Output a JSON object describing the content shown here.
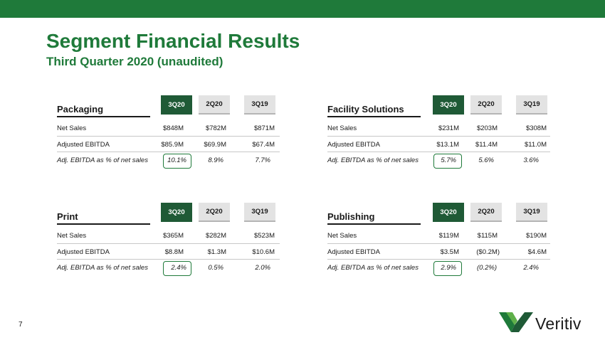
{
  "header": {
    "title": "Segment Financial Results",
    "subtitle": "Third Quarter 2020 (unaudited)"
  },
  "columns": [
    "3Q20",
    "2Q20",
    "3Q19"
  ],
  "row_labels": [
    "Net Sales",
    "Adjusted EBITDA",
    "Adj. EBITDA as % of net sales"
  ],
  "segments": [
    {
      "name": "Packaging",
      "net_sales": [
        "$848M",
        "$782M",
        "$871M"
      ],
      "adjusted_ebitda": [
        "$85.9M",
        "$69.9M",
        "$67.4M"
      ],
      "ebitda_margin": [
        "10.1%",
        "8.9%",
        "7.7%"
      ]
    },
    {
      "name": "Facility Solutions",
      "net_sales": [
        "$231M",
        "$203M",
        "$308M"
      ],
      "adjusted_ebitda": [
        "$13.1M",
        "$11.4M",
        "$11.0M"
      ],
      "ebitda_margin": [
        "5.7%",
        "5.6%",
        "3.6%"
      ]
    },
    {
      "name": "Print",
      "net_sales": [
        "$365M",
        "$282M",
        "$523M"
      ],
      "adjusted_ebitda": [
        "$8.8M",
        "$1.3M",
        "$10.6M"
      ],
      "ebitda_margin": [
        "2.4%",
        "0.5%",
        "2.0%"
      ]
    },
    {
      "name": "Publishing",
      "net_sales": [
        "$119M",
        "$115M",
        "$190M"
      ],
      "adjusted_ebitda": [
        "$3.5M",
        "($0.2M)",
        "$4.6M"
      ],
      "ebitda_margin": [
        "2.9%",
        "(0.2%)",
        "2.4%"
      ]
    }
  ],
  "footer": {
    "page_number": "7",
    "logo_text": "Veritiv"
  },
  "colors": {
    "brand_green": "#1f7a3a",
    "header_dark_green": "#1f5a36",
    "header_gray": "#e3e3e3"
  }
}
